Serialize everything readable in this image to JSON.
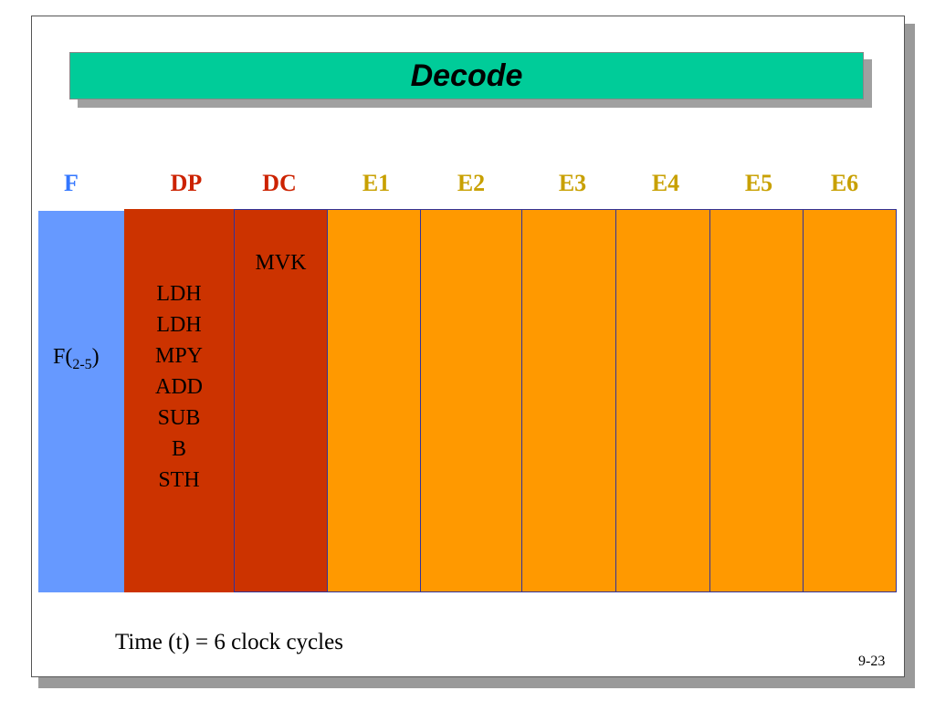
{
  "title": "Decode",
  "stages": [
    {
      "label": "F",
      "color": "#3377ff"
    },
    {
      "label": "DP",
      "color": "#cc2200"
    },
    {
      "label": "DC",
      "color": "#cc2200"
    },
    {
      "label": "E1",
      "color": "#c8a000"
    },
    {
      "label": "E2",
      "color": "#c8a000"
    },
    {
      "label": "E3",
      "color": "#c8a000"
    },
    {
      "label": "E4",
      "color": "#c8a000"
    },
    {
      "label": "E5",
      "color": "#c8a000"
    },
    {
      "label": "E6",
      "color": "#c8a000"
    }
  ],
  "fetch_cell": {
    "prefix": "F(",
    "sub": "2-5",
    "suffix": ")"
  },
  "dp_instructions": [
    "LDH",
    "LDH",
    "MPY",
    "ADD",
    "SUB",
    "B",
    "STH"
  ],
  "dc_instructions": [
    "MVK"
  ],
  "footer": "Time (t) = 6 clock cycles",
  "page_number": "9-23",
  "colors": {
    "title_bar": "#00cc99",
    "fetch_column": "#6699ff",
    "dispatch_column": "#cc3300",
    "execute_column": "#ff9900"
  }
}
